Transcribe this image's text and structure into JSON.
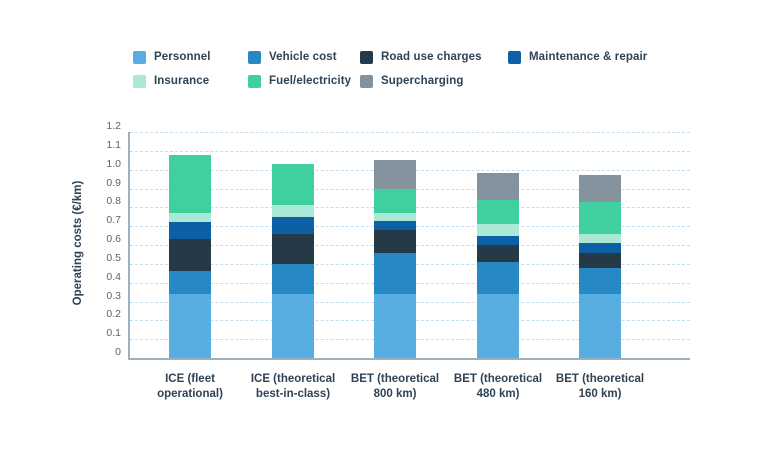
{
  "colors": {
    "background": "#ffffff",
    "text": "#2e4356",
    "tick_text": "#516779",
    "gridline": "#c4def1",
    "axis_line": "#9fb0bc"
  },
  "chart_data": {
    "type": "bar",
    "stacked": true,
    "title": "",
    "xlabel": "",
    "ylabel": "Operating costs (€/km)",
    "ylim": [
      0,
      1.2
    ],
    "ytick_step": 0.1,
    "yticks": [
      "0",
      "0.1",
      "0.2",
      "0.3",
      "0.4",
      "0.5",
      "0.6",
      "0.7",
      "0.8",
      "0.9",
      "1.0",
      "1.1",
      "1.2"
    ],
    "grid": "horizontal dashed",
    "legend_position": "top",
    "categories": [
      "ICE (fleet operational)",
      "ICE (theoretical best-in-class)",
      "BET (theoretical 800 km)",
      "BET (theoretical 480 km)",
      "BET (theoretical 160 km)"
    ],
    "category_lines": [
      [
        "ICE (fleet",
        "operational)"
      ],
      [
        "ICE (theoretical",
        "best-in-class)"
      ],
      [
        "BET (theoretical",
        "800 km)"
      ],
      [
        "BET (theoretical",
        "480 km)"
      ],
      [
        "BET (theoretical",
        "160 km)"
      ]
    ],
    "series": [
      {
        "name": "Personnel",
        "color": "#58ade1",
        "values": [
          0.34,
          0.34,
          0.34,
          0.34,
          0.34
        ]
      },
      {
        "name": "Vehicle cost",
        "color": "#2689c3",
        "values": [
          0.12,
          0.16,
          0.22,
          0.17,
          0.14
        ]
      },
      {
        "name": "Road use charges",
        "color": "#253947",
        "values": [
          0.17,
          0.16,
          0.12,
          0.09,
          0.08
        ]
      },
      {
        "name": "Maintenance & repair",
        "color": "#0d60a5",
        "values": [
          0.09,
          0.09,
          0.05,
          0.05,
          0.05
        ]
      },
      {
        "name": "Insurance",
        "color": "#abe8d7",
        "values": [
          0.05,
          0.06,
          0.04,
          0.06,
          0.05
        ]
      },
      {
        "name": "Fuel/electricity",
        "color": "#40cf9f",
        "values": [
          0.31,
          0.22,
          0.13,
          0.13,
          0.17
        ]
      },
      {
        "name": "Supercharging",
        "color": "#84929e",
        "values": [
          0.0,
          0.0,
          0.15,
          0.14,
          0.14
        ]
      }
    ],
    "bar_totals": [
      1.08,
      1.03,
      1.05,
      0.98,
      0.97
    ],
    "legend_rows": [
      [
        0,
        1,
        2,
        3
      ],
      [
        4,
        5,
        6
      ]
    ]
  }
}
